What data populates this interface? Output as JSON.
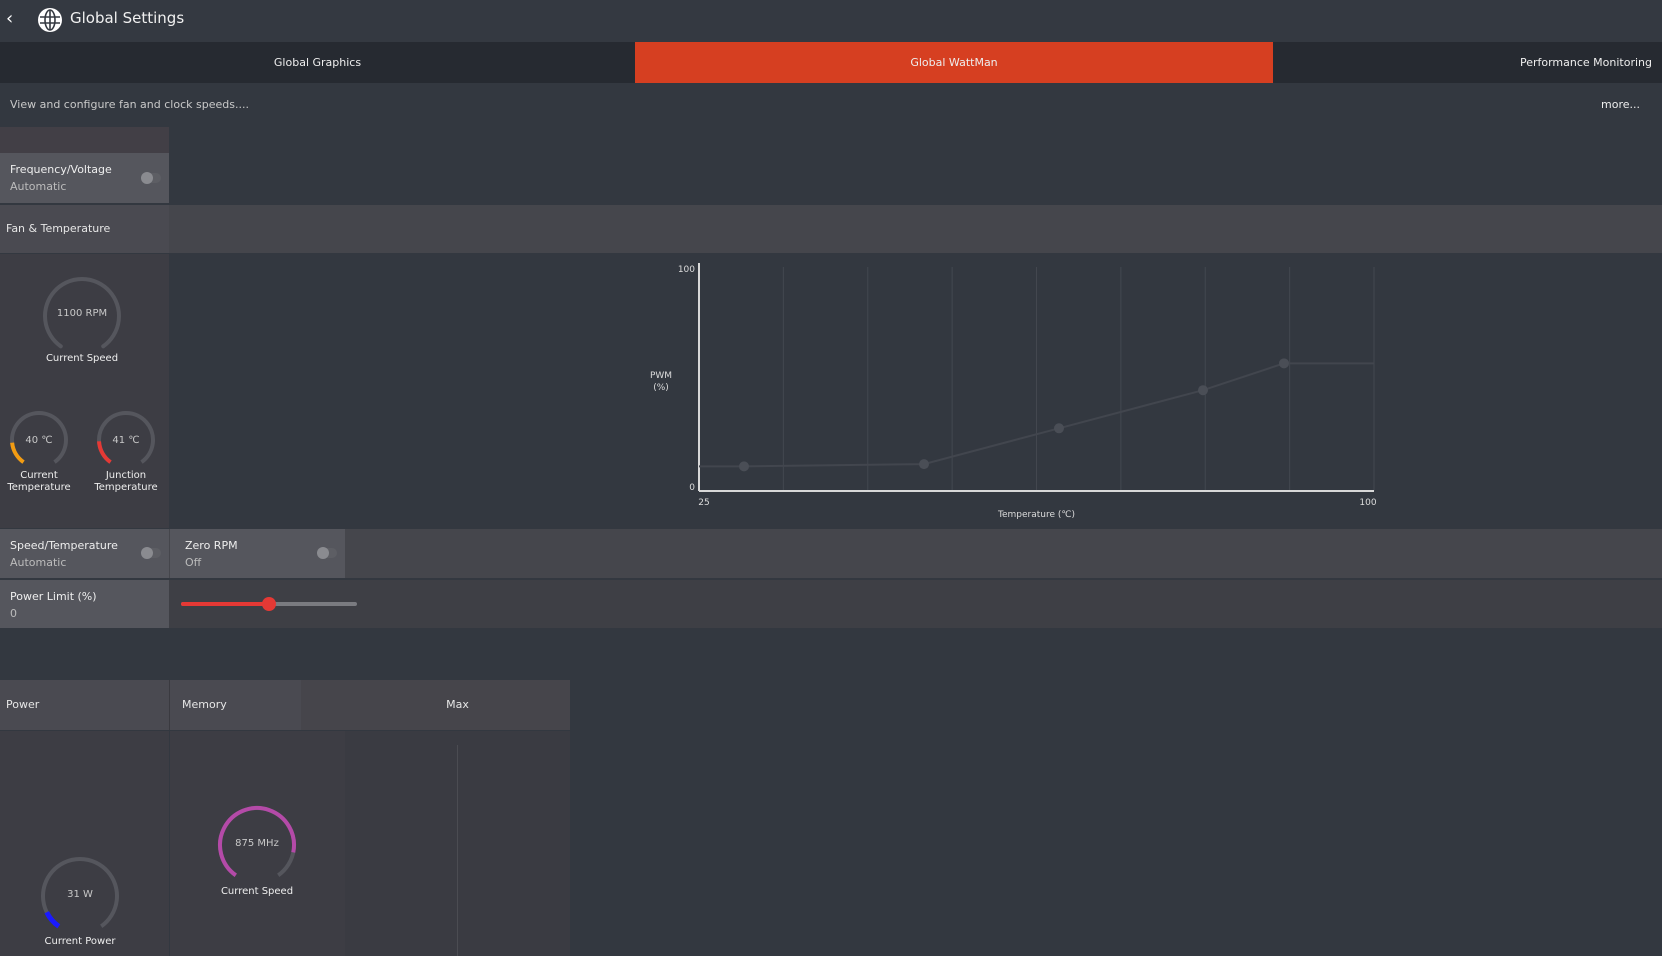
{
  "header": {
    "title": "Global Settings",
    "back_icon": "chevron-left-icon",
    "app_icon": "globe-icon"
  },
  "tabs": [
    {
      "label": "Global Graphics",
      "active": false
    },
    {
      "label": "Global WattMan",
      "active": true
    },
    {
      "label": "Performance Monitoring",
      "active": false
    }
  ],
  "description": "View and configure fan and clock speeds....",
  "more_label": "more...",
  "frequency_voltage": {
    "label": "Frequency/Voltage",
    "value": "Automatic",
    "toggle_on": false
  },
  "fan_temperature": {
    "section_label": "Fan & Temperature",
    "fan_speed": {
      "value": "1100 RPM",
      "label": "Current Speed"
    },
    "current_temp": {
      "value": "40 ℃",
      "label_line1": "Current",
      "label_line2": "Temperature",
      "color": "#f39c12"
    },
    "junction_temp": {
      "value": "41 ℃",
      "label_line1": "Junction",
      "label_line2": "Temperature",
      "color": "#e53935"
    }
  },
  "speed_temperature": {
    "label": "Speed/Temperature",
    "value": "Automatic",
    "toggle_on": false
  },
  "zero_rpm": {
    "label": "Zero RPM",
    "value": "Off",
    "toggle_on": false
  },
  "power_limit": {
    "label": "Power Limit (%)",
    "value": "0",
    "slider_fraction": 0.5,
    "slider_color": "#e53935"
  },
  "bottom": {
    "power": {
      "header": "Power",
      "value": "31 W",
      "label": "Current Power",
      "color": "#1a1aff"
    },
    "memory": {
      "header": "Memory",
      "value": "875 MHz",
      "label": "Current Speed",
      "color": "#b44aa8"
    },
    "max": {
      "header": "Max"
    }
  },
  "chart_data": {
    "type": "line",
    "xlabel": "Temperature (℃)",
    "ylabel_line1": "PWM",
    "ylabel_line2": "(%)",
    "xlim": [
      25,
      100
    ],
    "ylim": [
      0,
      100
    ],
    "x_tick_labels": [
      "25",
      "100"
    ],
    "y_tick_labels": [
      "0",
      "100"
    ],
    "grid": true,
    "points": [
      {
        "x": 30,
        "y": 11
      },
      {
        "x": 50,
        "y": 12
      },
      {
        "x": 65,
        "y": 28
      },
      {
        "x": 81,
        "y": 45
      },
      {
        "x": 90,
        "y": 57
      }
    ]
  }
}
